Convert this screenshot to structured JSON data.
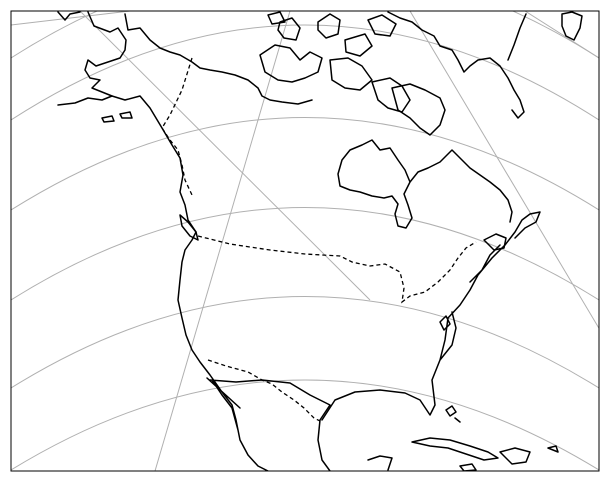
{
  "figure": {
    "kind": "map",
    "projection": "conic",
    "region": "North America",
    "gridlines": true,
    "borders_style": "dashed",
    "colors": {
      "background": "#ffffff",
      "coastline": "#000000",
      "border": "#000000",
      "gridline": "#b0b0b0",
      "frame": "#000000"
    }
  }
}
